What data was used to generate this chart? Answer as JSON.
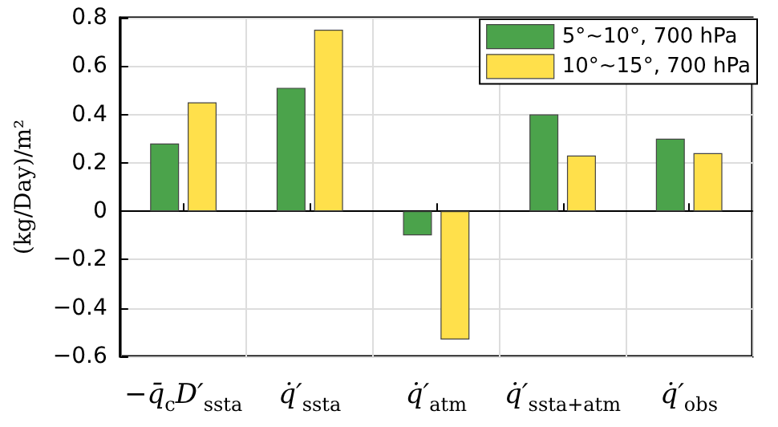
{
  "chart_data": {
    "type": "bar",
    "ylabel": "(kg/Day)/m²",
    "categories": [
      "−q̄$_{c}$D′$_{ssta}$",
      "q̇′$_{ssta}$",
      "q̇′$_{atm}$",
      "q̇′$_{ssta+atm}$",
      "q̇′$_{obs}$"
    ],
    "series": [
      {
        "name": "5°~10°, 700 hPa",
        "color": "#4ba34b",
        "values": [
          0.28,
          0.51,
          -0.1,
          0.4,
          0.3
        ]
      },
      {
        "name": "10°~15°, 700 hPa",
        "color": "#ffe04b",
        "values": [
          0.45,
          0.75,
          -0.53,
          0.23,
          0.24
        ]
      }
    ],
    "ylim": [
      -0.6,
      0.8
    ],
    "yticks": [
      -0.6,
      -0.4,
      -0.2,
      0,
      0.2,
      0.4,
      0.6,
      0.8
    ],
    "grid": true,
    "legend": "top right"
  }
}
